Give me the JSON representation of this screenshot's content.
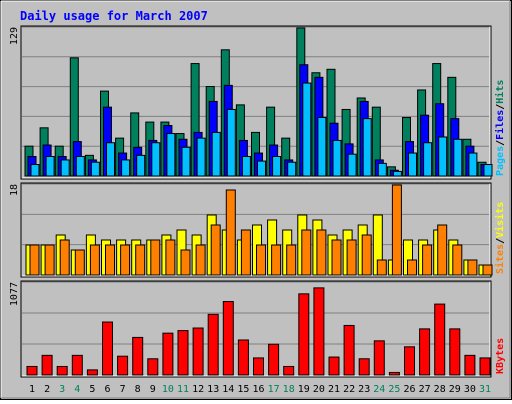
{
  "title": "Daily usage for March 2007",
  "colors": {
    "background": "#c0c0c0",
    "title": "#0000ff",
    "hits": "#00805c",
    "files": "#0000ff",
    "pages": "#00c0ff",
    "visits": "#ffff00",
    "sites": "#ff8000",
    "kbytes": "#ff0000",
    "weekend_label": "#00805c",
    "weekday_label": "#000000"
  },
  "chart_data": [
    {
      "type": "bar",
      "panel": "hits-files-pages",
      "ymax_label": "129",
      "legend": [
        "Pages",
        "/",
        "Files",
        "/",
        "Hits"
      ],
      "x": [
        1,
        2,
        3,
        4,
        5,
        6,
        7,
        8,
        9,
        10,
        11,
        12,
        13,
        14,
        15,
        16,
        17,
        18,
        19,
        20,
        21,
        22,
        23,
        24,
        25,
        26,
        27,
        28,
        29,
        30,
        31
      ],
      "series": [
        {
          "name": "Hits",
          "values": [
            26,
            42,
            26,
            103,
            18,
            74,
            33,
            55,
            47,
            47,
            37,
            98,
            78,
            110,
            62,
            38,
            60,
            33,
            129,
            90,
            93,
            58,
            68,
            60,
            8,
            51,
            75,
            98,
            86,
            32,
            12
          ]
        },
        {
          "name": "Files",
          "values": [
            17,
            27,
            17,
            30,
            14,
            60,
            20,
            25,
            31,
            44,
            32,
            38,
            65,
            79,
            31,
            20,
            27,
            14,
            97,
            86,
            46,
            28,
            65,
            14,
            5,
            30,
            53,
            63,
            50,
            26,
            10
          ]
        },
        {
          "name": "Pages",
          "values": [
            10,
            17,
            14,
            17,
            12,
            29,
            14,
            18,
            29,
            37,
            25,
            33,
            38,
            58,
            17,
            13,
            17,
            12,
            81,
            51,
            31,
            19,
            50,
            11,
            4,
            20,
            29,
            34,
            32,
            20,
            10
          ]
        }
      ]
    },
    {
      "type": "bar",
      "panel": "visits-sites",
      "ymax_label": "18",
      "legend": [
        "Sites",
        "/",
        "Visits"
      ],
      "x": [
        1,
        2,
        3,
        4,
        5,
        6,
        7,
        8,
        9,
        10,
        11,
        12,
        13,
        14,
        15,
        16,
        17,
        18,
        19,
        20,
        21,
        22,
        23,
        24,
        25,
        26,
        27,
        28,
        29,
        30,
        31
      ],
      "series": [
        {
          "name": "Visits",
          "values": [
            6,
            6,
            8,
            5,
            8,
            7,
            7,
            7,
            7,
            8,
            9,
            8,
            12,
            9,
            7,
            10,
            11,
            9,
            12,
            11,
            8,
            9,
            10,
            12,
            3,
            7,
            7,
            9,
            7,
            3,
            2
          ]
        },
        {
          "name": "Sites",
          "values": [
            6,
            6,
            7,
            5,
            6,
            6,
            6,
            6,
            7,
            7,
            5,
            6,
            10,
            17,
            9,
            6,
            6,
            6,
            9,
            9,
            7,
            7,
            8,
            3,
            18,
            3,
            6,
            10,
            6,
            3,
            2
          ]
        }
      ]
    },
    {
      "type": "bar",
      "panel": "kbytes",
      "ymax_label": "1077",
      "legend": [
        "KBytes"
      ],
      "x": [
        1,
        2,
        3,
        4,
        5,
        6,
        7,
        8,
        9,
        10,
        11,
        12,
        13,
        14,
        15,
        16,
        17,
        18,
        19,
        20,
        21,
        22,
        23,
        24,
        25,
        26,
        27,
        28,
        29,
        30,
        31
      ],
      "series": [
        {
          "name": "KBytes",
          "values": [
            100,
            230,
            100,
            230,
            60,
            620,
            220,
            440,
            190,
            490,
            520,
            550,
            710,
            860,
            410,
            200,
            360,
            100,
            950,
            1020,
            210,
            580,
            190,
            400,
            30,
            330,
            540,
            830,
            540,
            230,
            200
          ]
        }
      ]
    }
  ],
  "day_labels": [
    "1",
    "2",
    "3",
    "4",
    "5",
    "6",
    "7",
    "8",
    "9",
    "10",
    "11",
    "12",
    "13",
    "14",
    "15",
    "16",
    "17",
    "18",
    "19",
    "20",
    "21",
    "22",
    "23",
    "24",
    "25",
    "26",
    "27",
    "28",
    "29",
    "30",
    "31"
  ],
  "weekend_days": [
    3,
    4,
    10,
    11,
    17,
    18,
    24,
    25,
    31
  ]
}
